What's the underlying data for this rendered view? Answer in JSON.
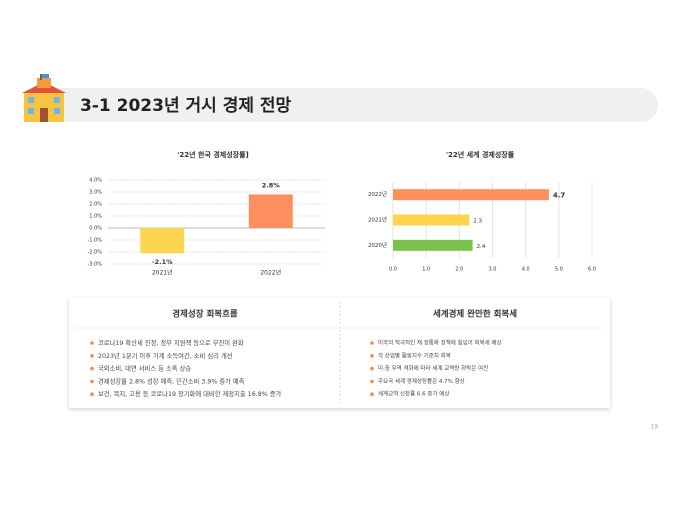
{
  "header": {
    "title": "3-1 2023년 거시 경제 전망"
  },
  "chart_data": [
    {
      "type": "bar",
      "title": "'22년 한국 경제성장률]",
      "categories": [
        "2021년",
        "2022년"
      ],
      "values": [
        -2.1,
        2.8
      ],
      "value_labels": [
        "-2.1%",
        "2.8%"
      ],
      "colors": [
        "#ffd54f",
        "#ff8f5e"
      ],
      "ylim": [
        -3,
        4
      ],
      "yticks": [
        {
          "value": -3,
          "label": "-3.0%"
        },
        {
          "value": -2,
          "label": "-2.0%"
        },
        {
          "value": -1,
          "label": "-1.0%"
        },
        {
          "value": 0,
          "label": "0.0%"
        },
        {
          "value": 1,
          "label": "1.0%"
        },
        {
          "value": 2,
          "label": "2.0%"
        },
        {
          "value": 3,
          "label": "3.0%"
        },
        {
          "value": 4,
          "label": "4.0%"
        }
      ],
      "grid": true
    },
    {
      "type": "hbar",
      "title": "'22년 세계 경제성장률",
      "categories": [
        "2022년",
        "2021년",
        "2020년"
      ],
      "values": [
        4.7,
        2.3,
        2.4
      ],
      "colors": [
        "#ff8f5e",
        "#ffd54f",
        "#7cc24a"
      ],
      "xlim": [
        0,
        6
      ],
      "xticks": [
        {
          "value": 0,
          "label": "0.0"
        },
        {
          "value": 1,
          "label": "1.0"
        },
        {
          "value": 2,
          "label": "2.0"
        },
        {
          "value": 3,
          "label": "3.0"
        },
        {
          "value": 4,
          "label": "4.0"
        },
        {
          "value": 5,
          "label": "5.0"
        },
        {
          "value": 6,
          "label": "6.0"
        }
      ],
      "grid": true
    }
  ],
  "panels": [
    {
      "title": "경제성장 회복흐름",
      "items": [
        "코로나19 확산세 진정, 정부 지원책 등으로 부진이 완화",
        "2023년 1분기 이후 가계 소득여건, 소비 심리 개선",
        "국외소비, 대면 서비스 등 소폭 상승",
        "경제성장률 2.8% 성장 예측, 민간소비 3.9% 증가 예측",
        "보건, 복지, 고용 등 코로나19 장기화에 대비한 재정지출 16.8% 증가"
      ]
    },
    {
      "title": "세계경제 완만한 회복세",
      "items": [
        "미국의 적극적인 재·정통화 정책에 힘입어 회복세 예상",
        "각 산업별 활동지수 기준치 회복",
        "미·중 무역 격화에 따라 세계 교역량 하락은 여전",
        "주요국 세계 경제성장률은 4.7% 향상",
        "세계교역 신장률 6.6 증가 예상"
      ]
    }
  ],
  "page_number": "19"
}
